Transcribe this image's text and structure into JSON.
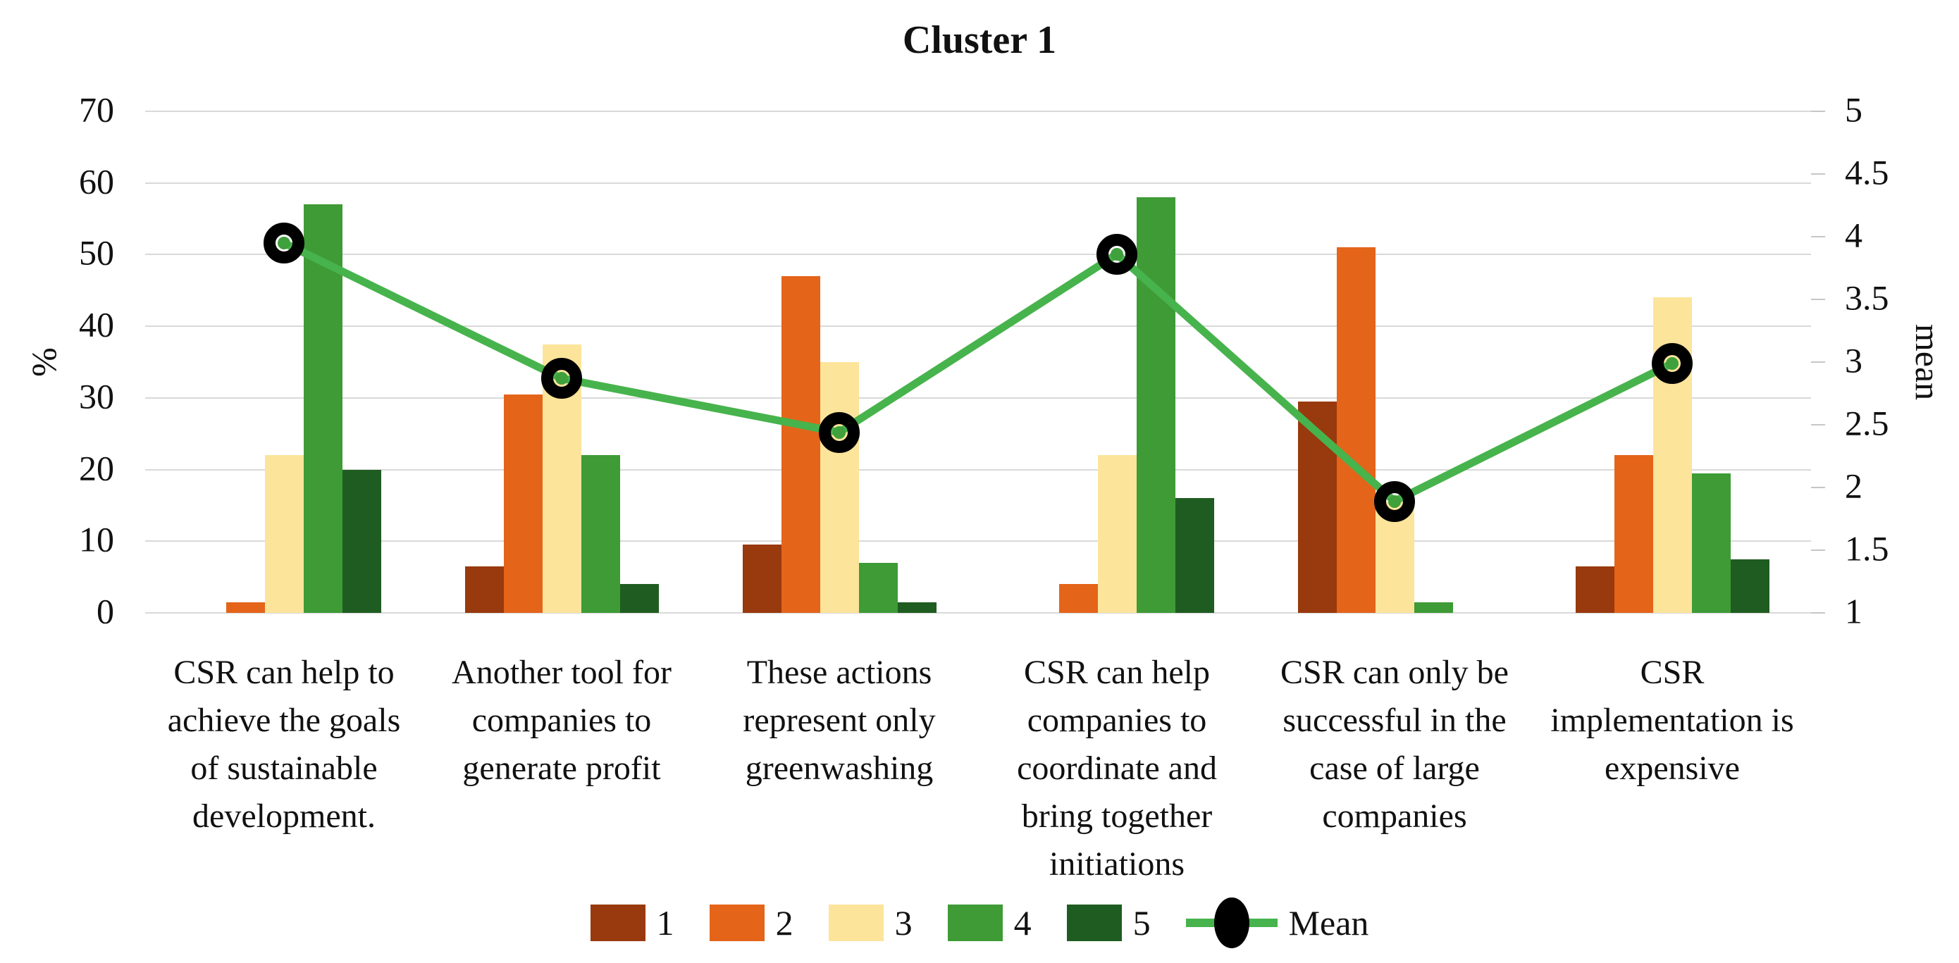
{
  "title": "Cluster 1",
  "left_axis": {
    "title": "%",
    "ticks": [
      0,
      10,
      20,
      30,
      40,
      50,
      60,
      70
    ]
  },
  "right_axis": {
    "title": "mean",
    "ticks": [
      1,
      1.5,
      2,
      2.5,
      3,
      3.5,
      4,
      4.5,
      5
    ]
  },
  "legend": {
    "entries": [
      "1",
      "2",
      "3",
      "4",
      "5",
      "Mean"
    ],
    "position": "bottom"
  },
  "colors": {
    "series1": "#98390E",
    "series2": "#E4641A",
    "series3": "#FCE49B",
    "series4": "#3E9B36",
    "series5": "#1F5C21",
    "mean_line": "#47B34C",
    "mean_marker_ring": "#000000",
    "mean_marker_dot": "#3FA03C",
    "gridline": "#D9D9D9",
    "tick": "#C6C6C6",
    "text": "#111111"
  },
  "chart_data": {
    "type": "bar",
    "subtype": "grouped-bars-with-mean-line",
    "title": "Cluster 1",
    "xlabel": "",
    "ylabel_left": "%",
    "ylabel_right": "mean",
    "ylim_left": [
      0,
      70
    ],
    "ylim_right": [
      1,
      5
    ],
    "grid": true,
    "legend_position": "bottom",
    "categories": [
      "CSR can help to achieve the goals of sustainable development.",
      "Another tool for companies to generate profit",
      "These actions represent only greenwashing",
      "CSR can help companies to coordinate and bring together initiations",
      "CSR can only be successful in the case of large companies",
      "CSR implementation is expensive"
    ],
    "category_label_lines": [
      [
        "CSR can help to",
        "achieve the goals",
        "of sustainable",
        "development."
      ],
      [
        "Another tool for",
        "companies to",
        "generate profit"
      ],
      [
        "These actions",
        "represent only",
        "greenwashing"
      ],
      [
        "CSR can help",
        "companies to",
        "coordinate and",
        "bring together",
        "initiations"
      ],
      [
        "CSR can only be",
        "successful in the",
        "case of large",
        "companies"
      ],
      [
        "CSR",
        "implementation is",
        "expensive"
      ]
    ],
    "series": [
      {
        "name": "1",
        "color": "#98390E",
        "axis": "left",
        "values": [
          0,
          6.5,
          9.5,
          0,
          29.5,
          6.5
        ]
      },
      {
        "name": "2",
        "color": "#E4641A",
        "axis": "left",
        "values": [
          1.5,
          30.5,
          47,
          4,
          51,
          22
        ]
      },
      {
        "name": "3",
        "color": "#FCE49B",
        "axis": "left",
        "values": [
          22,
          37.5,
          35,
          22,
          15.5,
          44
        ]
      },
      {
        "name": "4",
        "color": "#3E9B36",
        "axis": "left",
        "values": [
          57,
          22,
          7,
          58,
          1.5,
          19.5
        ]
      },
      {
        "name": "5",
        "color": "#1F5C21",
        "axis": "left",
        "values": [
          20,
          4,
          1.5,
          16,
          0,
          7.5
        ]
      }
    ],
    "mean_series": {
      "name": "Mean",
      "color": "#47B34C",
      "axis": "right",
      "values": [
        3.95,
        2.87,
        2.44,
        3.86,
        1.89,
        2.99
      ]
    }
  }
}
